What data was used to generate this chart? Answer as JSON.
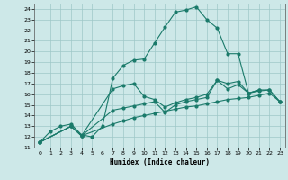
{
  "xlabel": "Humidex (Indice chaleur)",
  "bg_color": "#cde8e8",
  "grid_color": "#9ec8c8",
  "line_color": "#1a7a6a",
  "xlim": [
    -0.5,
    23.5
  ],
  "ylim": [
    11,
    24.5
  ],
  "xticks": [
    0,
    1,
    2,
    3,
    4,
    5,
    6,
    7,
    8,
    9,
    10,
    11,
    12,
    13,
    14,
    15,
    16,
    17,
    18,
    19,
    20,
    21,
    22,
    23
  ],
  "yticks": [
    11,
    12,
    13,
    14,
    15,
    16,
    17,
    18,
    19,
    20,
    21,
    22,
    23,
    24
  ],
  "line1_x": [
    0,
    1,
    2,
    3,
    4,
    5,
    6,
    7,
    8,
    9,
    10,
    11,
    12,
    13,
    14,
    15,
    16,
    17,
    18,
    19,
    20,
    21
  ],
  "line1_y": [
    11.5,
    12.5,
    13.0,
    13.2,
    12.2,
    12.0,
    13.0,
    17.5,
    18.7,
    19.2,
    19.3,
    20.8,
    22.3,
    23.7,
    23.9,
    24.2,
    23.0,
    22.2,
    19.8,
    19.8,
    16.1,
    16.4
  ],
  "line2_x": [
    0,
    3,
    4,
    7,
    8,
    9,
    10,
    11,
    12,
    13,
    14,
    15,
    16,
    17,
    18,
    19,
    20,
    21,
    22,
    23
  ],
  "line2_y": [
    11.5,
    13.0,
    12.1,
    13.2,
    13.5,
    13.8,
    14.0,
    14.2,
    14.4,
    14.6,
    14.8,
    14.9,
    15.1,
    15.3,
    15.5,
    15.6,
    15.7,
    15.9,
    16.1,
    15.3
  ],
  "line3_x": [
    0,
    3,
    4,
    7,
    8,
    9,
    10,
    11,
    12,
    13,
    14,
    15,
    16,
    17,
    18,
    19,
    20,
    21,
    22,
    23
  ],
  "line3_y": [
    11.5,
    13.0,
    12.1,
    14.5,
    14.7,
    14.9,
    15.1,
    15.3,
    14.3,
    15.0,
    15.3,
    15.5,
    15.7,
    17.3,
    16.5,
    16.9,
    16.1,
    16.3,
    16.4,
    15.3
  ],
  "line4_x": [
    0,
    3,
    4,
    7,
    8,
    9,
    10,
    11,
    12,
    13,
    14,
    15,
    16,
    17,
    18,
    19,
    20,
    21,
    22,
    23
  ],
  "line4_y": [
    11.5,
    13.0,
    12.1,
    16.5,
    16.8,
    17.0,
    15.8,
    15.5,
    14.8,
    15.2,
    15.5,
    15.7,
    16.0,
    17.3,
    17.0,
    17.2,
    16.1,
    16.4,
    16.4,
    15.3
  ]
}
